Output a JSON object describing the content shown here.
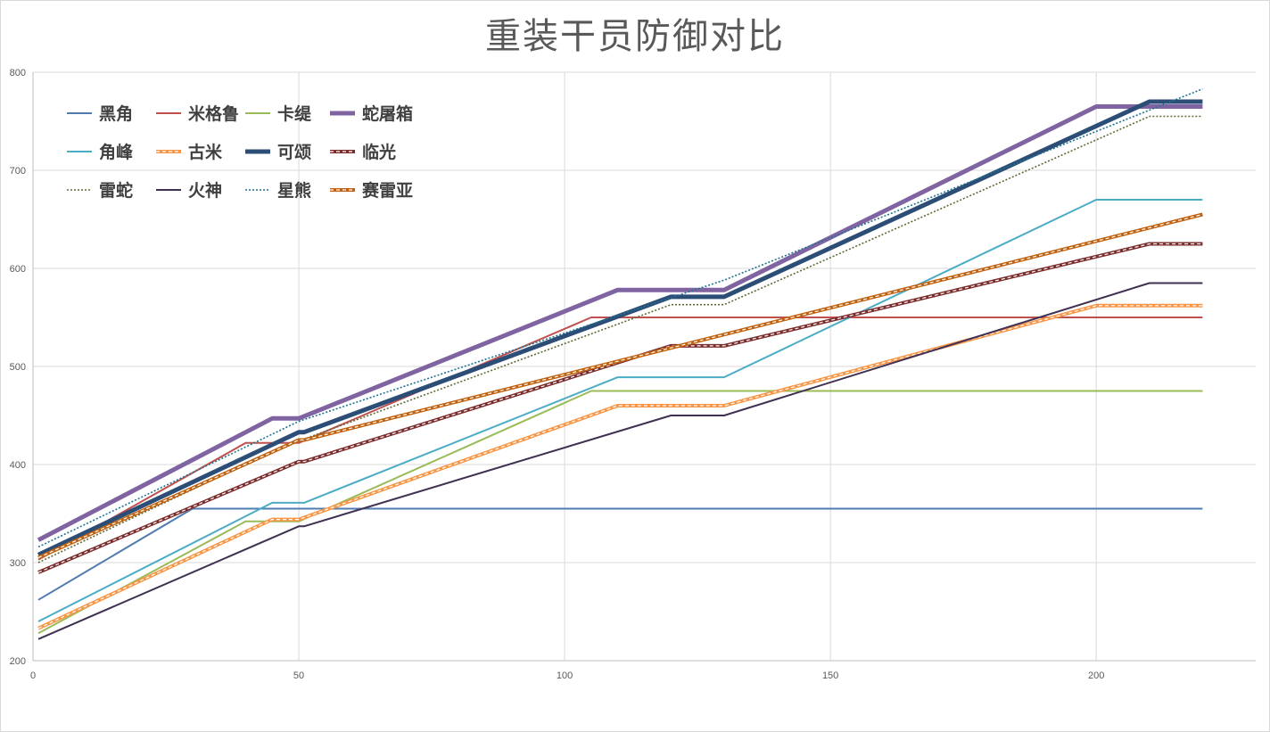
{
  "chart_data": {
    "type": "line",
    "title": "重装干员防御对比",
    "xlabel": "",
    "ylabel": "",
    "xlim": [
      0,
      230
    ],
    "ylim": [
      200,
      800
    ],
    "x_ticks": [
      0,
      50,
      100,
      150,
      200
    ],
    "y_ticks": [
      200,
      300,
      400,
      500,
      600,
      700,
      800
    ],
    "grid": true,
    "legend_position": "top-left",
    "series": [
      {
        "name": "黑角",
        "color": "#4f7bb0",
        "style": "solid",
        "x": [
          1,
          30,
          220
        ],
        "y": [
          262,
          355,
          355
        ]
      },
      {
        "name": "米格鲁",
        "color": "#c0504d",
        "style": "solid",
        "x": [
          1,
          40,
          45,
          50,
          105,
          220
        ],
        "y": [
          303,
          422,
          422,
          422,
          550,
          550
        ]
      },
      {
        "name": "卡缇",
        "color": "#9bbb59",
        "style": "solid",
        "x": [
          1,
          40,
          50,
          105,
          220
        ],
        "y": [
          228,
          342,
          342,
          475,
          475
        ]
      },
      {
        "name": "蛇屠箱",
        "color": "#8064a2",
        "style": "thick",
        "x": [
          1,
          45,
          50,
          110,
          130,
          200,
          220
        ],
        "y": [
          323,
          447,
          447,
          578,
          578,
          765,
          765
        ]
      },
      {
        "name": "角峰",
        "color": "#4bacc6",
        "style": "solid",
        "x": [
          1,
          45,
          51,
          110,
          130,
          200,
          220
        ],
        "y": [
          240,
          361,
          361,
          489,
          489,
          670,
          670
        ]
      },
      {
        "name": "古米",
        "color": "#f79646",
        "style": "double",
        "x": [
          1,
          45,
          50,
          110,
          130,
          200,
          220
        ],
        "y": [
          233,
          344,
          344,
          460,
          460,
          562,
          562
        ]
      },
      {
        "name": "可颂",
        "color": "#2c4d75",
        "style": "thick",
        "x": [
          1,
          50,
          51,
          120,
          130,
          210,
          220
        ],
        "y": [
          308,
          433,
          433,
          571,
          571,
          770,
          770
        ]
      },
      {
        "name": "临光",
        "color": "#7b2c2c",
        "style": "double",
        "x": [
          1,
          50,
          51,
          120,
          130,
          210,
          220
        ],
        "y": [
          290,
          403,
          403,
          521,
          521,
          625,
          625
        ]
      },
      {
        "name": "雷蛇",
        "color": "#5f6b33",
        "style": "dotted",
        "x": [
          1,
          50,
          51,
          120,
          130,
          210,
          220
        ],
        "y": [
          300,
          426,
          426,
          563,
          563,
          755,
          755
        ]
      },
      {
        "name": "火神",
        "color": "#403152",
        "style": "solid",
        "x": [
          1,
          50,
          51,
          120,
          130,
          210,
          220
        ],
        "y": [
          222,
          337,
          337,
          450,
          450,
          585,
          585
        ]
      },
      {
        "name": "星熊",
        "color": "#1f7391",
        "style": "dotted",
        "x": [
          1,
          50,
          130,
          220
        ],
        "y": [
          316,
          444,
          588,
          783
        ]
      },
      {
        "name": "赛雷亚",
        "color": "#c0620f",
        "style": "double",
        "x": [
          1,
          50,
          51,
          220
        ],
        "y": [
          305,
          425,
          425,
          655
        ]
      }
    ]
  }
}
